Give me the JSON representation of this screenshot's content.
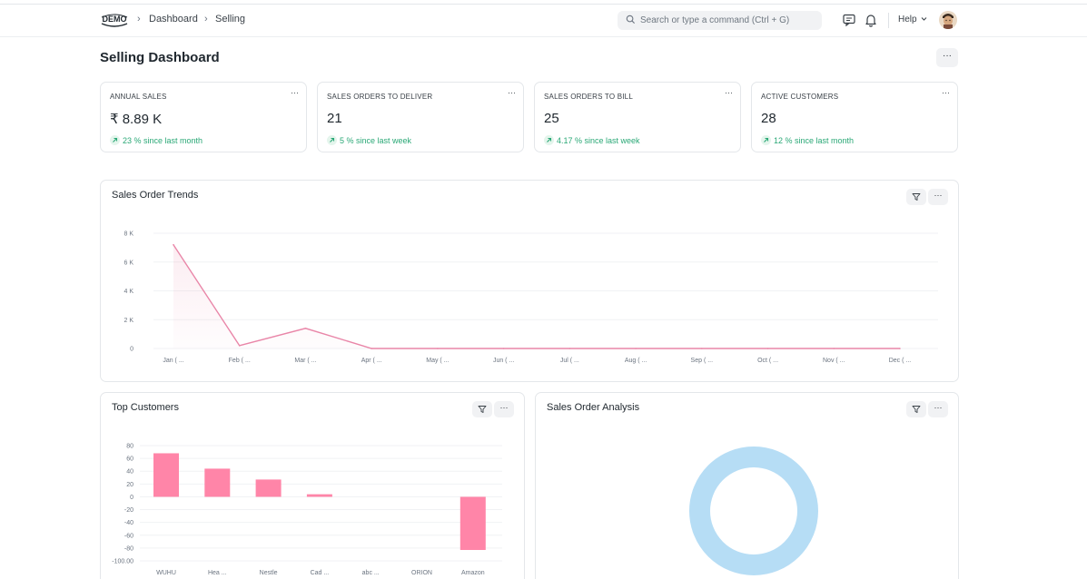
{
  "navbar": {
    "logo_text": "DEMO",
    "breadcrumbs": [
      "Dashboard",
      "Selling"
    ],
    "search_placeholder": "Search or type a command (Ctrl + G)",
    "help_label": "Help"
  },
  "page": {
    "title": "Selling Dashboard",
    "menu_label": "···"
  },
  "number_cards": [
    {
      "label": "ANNUAL SALES",
      "value": "₹ 8.89 K",
      "stat": "23 % since last month"
    },
    {
      "label": "SALES ORDERS TO DELIVER",
      "value": "21",
      "stat": "5 % since last week"
    },
    {
      "label": "SALES ORDERS TO BILL",
      "value": "25",
      "stat": "4.17 % since last week"
    },
    {
      "label": "ACTIVE CUSTOMERS",
      "value": "28",
      "stat": "12 % since last month"
    }
  ],
  "card_menu_label": "···",
  "charts": {
    "trends_title": "Sales Order Trends",
    "top_customers_title": "Top Customers",
    "analysis_title": "Sales Order Analysis"
  },
  "colors": {
    "line": "#e986a8",
    "bar": "#ff85a8",
    "donut": "#b6ddf5",
    "positive": "#2aa876"
  },
  "chart_data": [
    {
      "type": "line",
      "categories": [
        "Jan ( ...",
        "Feb ( ...",
        "Mar ( ...",
        "Apr ( ...",
        "May ( ...",
        "Jun ( ...",
        "Jul ( ...",
        "Aug ( ...",
        "Sep ( ...",
        "Oct ( ...",
        "Nov ( ...",
        "Dec ( ..."
      ],
      "values": [
        7200,
        200,
        1400,
        0,
        0,
        0,
        0,
        0,
        0,
        0,
        0,
        0
      ],
      "yticks": [
        "0",
        "2 K",
        "4 K",
        "6 K",
        "8 K"
      ],
      "ylim": [
        0,
        8000
      ],
      "grid": true
    },
    {
      "type": "bar",
      "categories": [
        "WUHU",
        "Hea ...",
        "Nestle",
        "Cad ...",
        "abc ...",
        "ORION",
        "Amazon"
      ],
      "values": [
        68,
        44,
        27,
        4,
        0,
        0,
        -83
      ],
      "yticks": [
        "-100.00",
        "-80",
        "-60",
        "-40",
        "-20",
        "0",
        "20",
        "40",
        "60",
        "80"
      ],
      "ylim": [
        -100,
        80
      ],
      "grid": true
    },
    {
      "type": "pie",
      "style": "donut",
      "values": [
        100
      ]
    }
  ]
}
